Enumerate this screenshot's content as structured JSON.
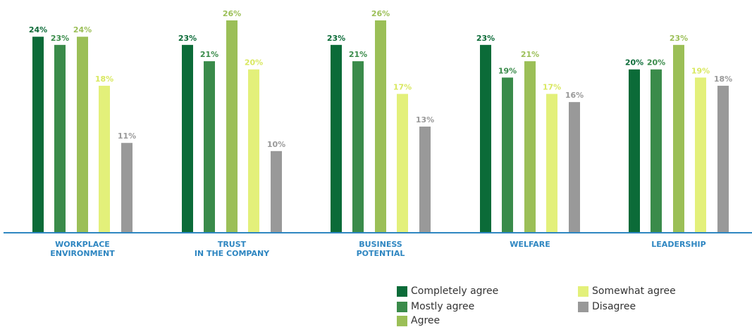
{
  "chart_data": {
    "type": "bar",
    "categories": [
      [
        "WORKPLACE",
        "ENVIRONMENT"
      ],
      [
        "TRUST",
        "IN THE COMPANY"
      ],
      [
        "BUSINESS",
        "POTENTIAL"
      ],
      [
        "WELFARE"
      ],
      [
        "LEADERSHIP"
      ]
    ],
    "series": [
      {
        "name": "Completely agree",
        "color": "#0b6b38",
        "label_color": "#0b6b38",
        "values": [
          24,
          23,
          23,
          23,
          20
        ]
      },
      {
        "name": "Mostly agree",
        "color": "#3a8b4a",
        "label_color": "#3a8b4a",
        "values": [
          23,
          21,
          21,
          19,
          20
        ]
      },
      {
        "name": "Agree",
        "color": "#9bbf57",
        "label_color": "#9bbf57",
        "values": [
          24,
          26,
          26,
          21,
          23
        ]
      },
      {
        "name": "Somewhat agree",
        "color": "#e3f07a",
        "label_color": "#d9e860",
        "values": [
          18,
          20,
          17,
          17,
          19
        ]
      },
      {
        "name": "Disagree",
        "color": "#999999",
        "label_color": "#999999",
        "values": [
          11,
          10,
          13,
          16,
          18
        ]
      }
    ],
    "value_suffix": "%",
    "ylim": [
      0,
      26
    ],
    "axis_color": "#2e86c1",
    "grid": false,
    "legend_position": "bottom-right"
  }
}
